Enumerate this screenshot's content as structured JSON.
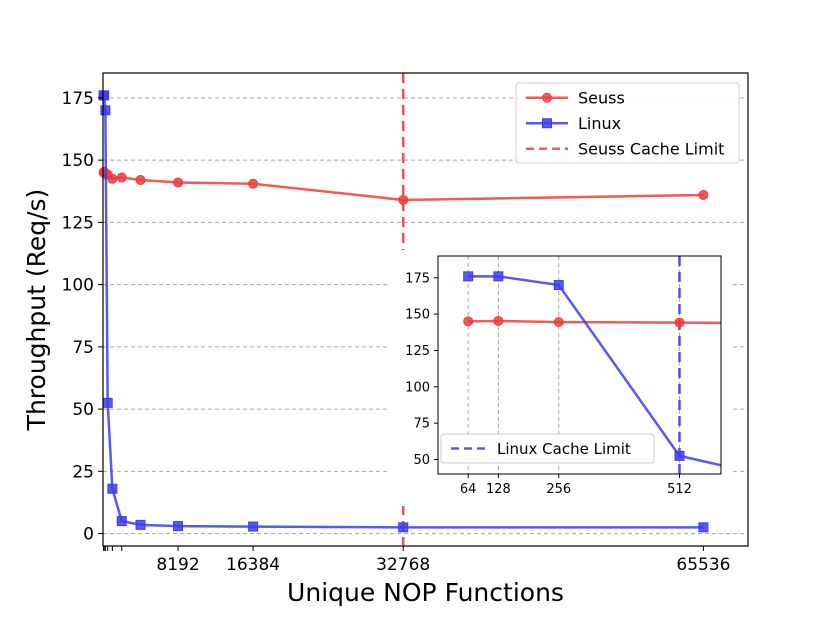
{
  "chart_data": [
    {
      "id": "main",
      "type": "line",
      "xlabel": "Unique NOP Functions",
      "ylabel": "Throughput (Req/s)",
      "xlim": [
        0,
        70400
      ],
      "ylim": [
        -5,
        185
      ],
      "xticks": [
        64,
        128,
        256,
        512,
        1024,
        2048,
        8192,
        16384,
        32768,
        65536
      ],
      "xtick_labels": [
        "",
        "",
        "",
        "",
        "",
        "",
        "8192",
        "16384",
        "32768",
        "65536"
      ],
      "yticks": [
        0,
        25,
        50,
        75,
        100,
        125,
        150,
        175
      ],
      "grid": "y-dashed",
      "legend": {
        "position": "top-right",
        "entries": [
          {
            "label": "Seuss",
            "color": "#f03c3c",
            "marker": "circle",
            "style": "solid"
          },
          {
            "label": "Linux",
            "color": "#3c3cf0",
            "marker": "square",
            "style": "solid"
          },
          {
            "label": "Seuss Cache Limit",
            "color": "#f03c3c",
            "marker": "none",
            "style": "dashed"
          }
        ]
      },
      "series": [
        {
          "name": "Seuss",
          "color": "#f03c3c",
          "marker": "circle",
          "x": [
            64,
            128,
            256,
            512,
            1024,
            2048,
            4096,
            8192,
            16384,
            32768,
            65536
          ],
          "y": [
            145,
            145.3,
            144.5,
            144.2,
            142.5,
            143,
            142,
            141,
            140.5,
            134,
            136
          ]
        },
        {
          "name": "Linux",
          "color": "#3c3cf0",
          "marker": "square",
          "x": [
            64,
            128,
            256,
            512,
            1024,
            2048,
            4096,
            8192,
            16384,
            32768,
            65536
          ],
          "y": [
            176,
            176,
            170,
            52.5,
            18,
            5,
            3.5,
            3,
            2.8,
            2.5,
            2.5
          ]
        }
      ],
      "vlines": [
        {
          "x": 32768,
          "color": "#f03c3c",
          "style": "dashed"
        }
      ]
    },
    {
      "id": "inset",
      "type": "line",
      "xlim": [
        0,
        600
      ],
      "ylim": [
        40,
        190
      ],
      "xticks": [
        64,
        128,
        256,
        512
      ],
      "xtick_labels": [
        "64",
        "128",
        "256",
        "512"
      ],
      "yticks": [
        50,
        75,
        100,
        125,
        150,
        175
      ],
      "grid": "x-dashed",
      "legend": {
        "position": "lower-left",
        "entries": [
          {
            "label": "Linux Cache Limit",
            "color": "#3c3cf0",
            "marker": "none",
            "style": "dashed"
          }
        ]
      },
      "series": [
        {
          "name": "Seuss",
          "color": "#f03c3c",
          "marker": "circle",
          "x": [
            64,
            128,
            256,
            512,
            600
          ],
          "y": [
            145,
            145.3,
            144.5,
            144.2,
            144
          ]
        },
        {
          "name": "Linux",
          "color": "#3c3cf0",
          "marker": "square",
          "x": [
            64,
            128,
            256,
            512,
            600
          ],
          "y": [
            176,
            176,
            170,
            52.5,
            46
          ]
        }
      ],
      "markers_x_max": 512,
      "vlines": [
        {
          "x": 512,
          "color": "#3c3cf0",
          "style": "dashed"
        }
      ]
    }
  ]
}
